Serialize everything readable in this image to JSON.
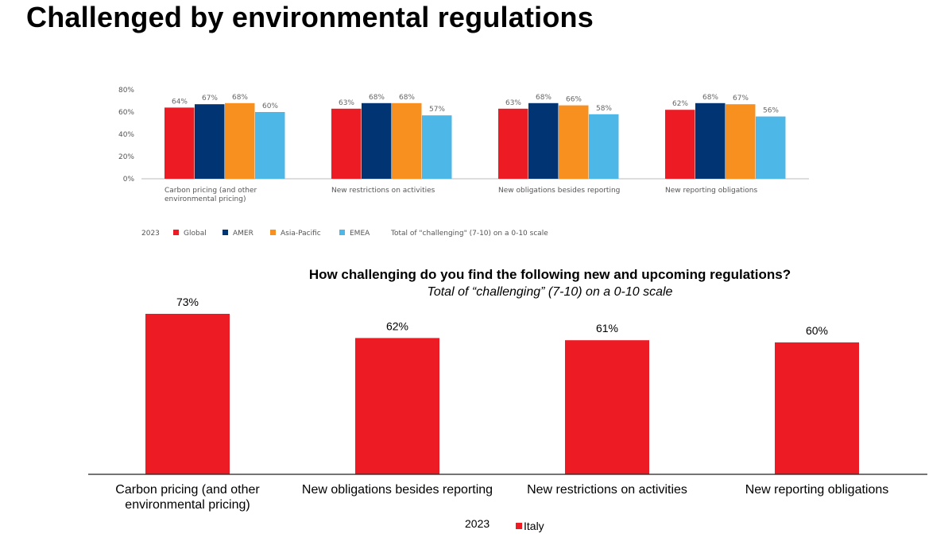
{
  "page": {
    "title": "Challenged by environmental regulations"
  },
  "chart_data": [
    {
      "type": "bar",
      "title": "",
      "categories": [
        [
          "Carbon pricing (and other",
          "environmental pricing)"
        ],
        [
          "New restrictions on activities"
        ],
        [
          "New obligations besides reporting"
        ],
        [
          "New reporting obligations"
        ]
      ],
      "series": [
        {
          "name": "Global",
          "color": "#ed1c24",
          "values": [
            64,
            63,
            63,
            62
          ]
        },
        {
          "name": "AMER",
          "color": "#003473",
          "values": [
            67,
            68,
            68,
            68
          ]
        },
        {
          "name": "Asia-Pacific",
          "color": "#f7901e",
          "values": [
            68,
            68,
            66,
            67
          ]
        },
        {
          "name": "EMEA",
          "color": "#4db8e8",
          "values": [
            60,
            57,
            58,
            56
          ]
        }
      ],
      "yticks": [
        "0%",
        "20%",
        "40%",
        "60%",
        "80%"
      ],
      "ylim": [
        0,
        80
      ],
      "value_suffix": "%",
      "legend_year": "2023",
      "legend_note": "Total of \"challenging\" (7-10) on a 0-10 scale",
      "legend_position": "bottom",
      "grid": false
    },
    {
      "type": "bar",
      "title": "How challenging do you find the following new and upcoming regulations?",
      "subtitle": "Total of “challenging” (7-10) on a 0-10 scale",
      "categories": [
        [
          "Carbon pricing (and other",
          "environmental pricing)"
        ],
        [
          "New obligations besides reporting"
        ],
        [
          "New restrictions on activities"
        ],
        [
          "New reporting obligations"
        ]
      ],
      "series": [
        {
          "name": "Italy",
          "color": "#ed1c24",
          "values": [
            73,
            62,
            61,
            60
          ]
        }
      ],
      "ylim": [
        0,
        73
      ],
      "value_suffix": "%",
      "legend_year": "2023",
      "legend_position": "bottom",
      "grid": false
    }
  ]
}
